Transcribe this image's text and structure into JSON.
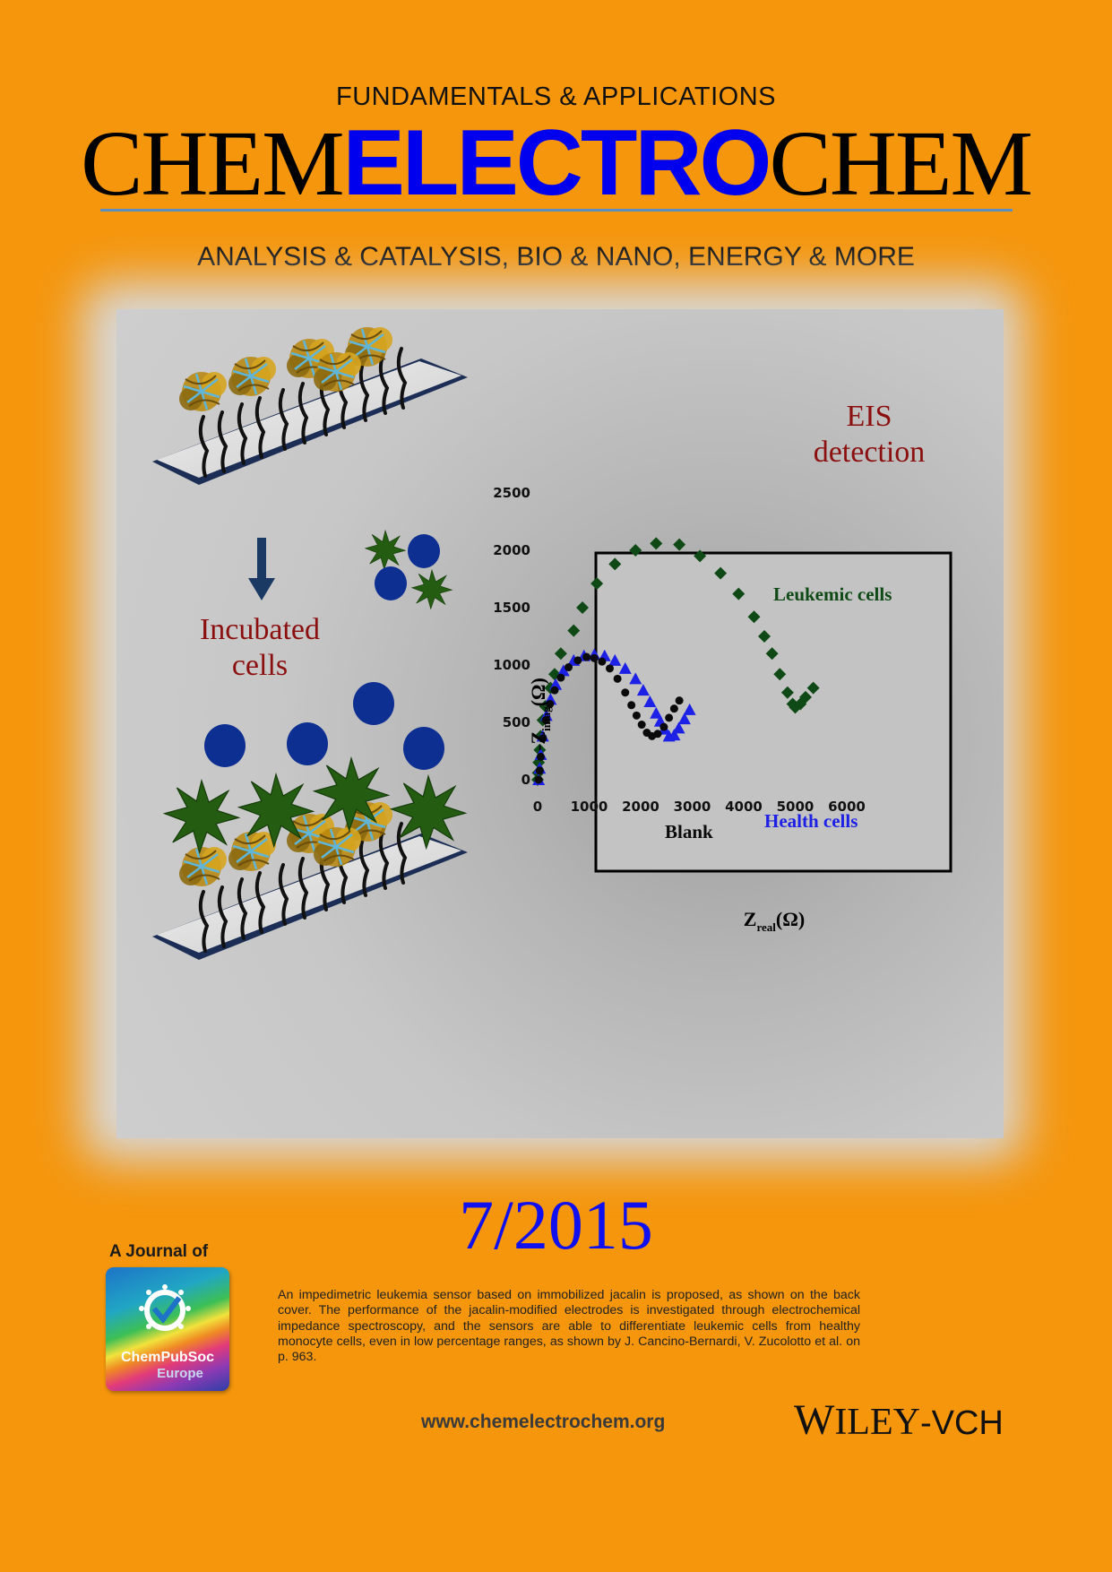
{
  "header": {
    "kicker": "FUNDAMENTALS & APPLICATIONS",
    "title_part1": "CHEM",
    "title_part2": "ELECTRO",
    "title_part3": "CHEM",
    "subtitle": "ANALYSIS & CATALYSIS, BIO & NANO, ENERGY & MORE"
  },
  "artwork": {
    "incubated_line1": "Incubated",
    "incubated_line2": "cells",
    "eis_line1": "EIS",
    "eis_line2": "detection"
  },
  "chart_data": {
    "type": "scatter",
    "title": "",
    "xlabel": "Z",
    "xlabel_sub": "real",
    "xlabel_unit": "(Ω)",
    "ylabel": "-Z",
    "ylabel_sub": "imag",
    "ylabel_unit": "(Ω)",
    "xlim": [
      0,
      6000
    ],
    "ylim": [
      0,
      2500
    ],
    "x_ticks": [
      "0",
      "1000",
      "2000",
      "3000",
      "4000",
      "5000",
      "6000"
    ],
    "y_ticks": [
      "0",
      "500",
      "1000",
      "1500",
      "2000",
      "2500"
    ],
    "grid": false,
    "series": [
      {
        "name": "Leukemic cells",
        "color": "#0f4a16",
        "marker": "diamond",
        "points": [
          [
            0,
            0
          ],
          [
            10,
            60
          ],
          [
            20,
            150
          ],
          [
            40,
            260
          ],
          [
            60,
            380
          ],
          [
            100,
            520
          ],
          [
            150,
            640
          ],
          [
            250,
            800
          ],
          [
            330,
            920
          ],
          [
            450,
            1100
          ],
          [
            700,
            1300
          ],
          [
            870,
            1500
          ],
          [
            1150,
            1710
          ],
          [
            1500,
            1880
          ],
          [
            1900,
            2000
          ],
          [
            2300,
            2060
          ],
          [
            2750,
            2050
          ],
          [
            3150,
            1950
          ],
          [
            3550,
            1800
          ],
          [
            3900,
            1620
          ],
          [
            4200,
            1420
          ],
          [
            4400,
            1250
          ],
          [
            4550,
            1100
          ],
          [
            4700,
            920
          ],
          [
            4850,
            760
          ],
          [
            4950,
            660
          ],
          [
            5000,
            630
          ],
          [
            5100,
            660
          ],
          [
            5200,
            720
          ],
          [
            5350,
            800
          ]
        ]
      },
      {
        "name": "Health cells",
        "color": "#1d21e6",
        "marker": "triangle",
        "points": [
          [
            20,
            0
          ],
          [
            40,
            100
          ],
          [
            60,
            220
          ],
          [
            100,
            380
          ],
          [
            170,
            560
          ],
          [
            250,
            700
          ],
          [
            350,
            830
          ],
          [
            500,
            950
          ],
          [
            700,
            1040
          ],
          [
            900,
            1080
          ],
          [
            1100,
            1090
          ],
          [
            1300,
            1080
          ],
          [
            1500,
            1040
          ],
          [
            1700,
            970
          ],
          [
            1900,
            880
          ],
          [
            2050,
            780
          ],
          [
            2180,
            680
          ],
          [
            2300,
            580
          ],
          [
            2380,
            510
          ],
          [
            2460,
            440
          ],
          [
            2550,
            380
          ],
          [
            2650,
            390
          ],
          [
            2740,
            450
          ],
          [
            2850,
            530
          ],
          [
            2950,
            610
          ]
        ]
      },
      {
        "name": "Blank",
        "color": "#0a0a0a",
        "marker": "circle",
        "points": [
          [
            20,
            0
          ],
          [
            40,
            80
          ],
          [
            60,
            200
          ],
          [
            100,
            360
          ],
          [
            160,
            520
          ],
          [
            240,
            660
          ],
          [
            330,
            780
          ],
          [
            450,
            890
          ],
          [
            600,
            980
          ],
          [
            780,
            1040
          ],
          [
            950,
            1070
          ],
          [
            1100,
            1060
          ],
          [
            1250,
            1030
          ],
          [
            1400,
            970
          ],
          [
            1550,
            880
          ],
          [
            1700,
            760
          ],
          [
            1820,
            650
          ],
          [
            1920,
            560
          ],
          [
            2020,
            480
          ],
          [
            2120,
            410
          ],
          [
            2220,
            380
          ],
          [
            2330,
            400
          ],
          [
            2450,
            460
          ],
          [
            2550,
            540
          ],
          [
            2650,
            620
          ],
          [
            2750,
            690
          ]
        ]
      }
    ]
  },
  "issue": "7/2015",
  "society": {
    "journal_of": "A Journal of",
    "logo_line1": "ChemPubSoc",
    "logo_line2": "Europe"
  },
  "abstract": "An impedimetric leukemia sensor based on immobilized jacalin is proposed, as shown on the back cover. The performance of the jacalin-modified electrodes is investigated through electrochemical impedance spectroscopy, and the sensors are able to differentiate leukemic cells from healthy monocyte cells, even in low percentage ranges, as shown by J. Cancino-Bernardi, V. Zucolotto et al. on p. 963.",
  "footer": {
    "url": "www.chemelectrochem.org",
    "publisher_part1": "W",
    "publisher_part2": "ILEY",
    "publisher_part3": "-VCH"
  },
  "colors": {
    "background": "#f5960d",
    "accent_blue": "#0000ee",
    "label_red": "#8b0f0f"
  }
}
